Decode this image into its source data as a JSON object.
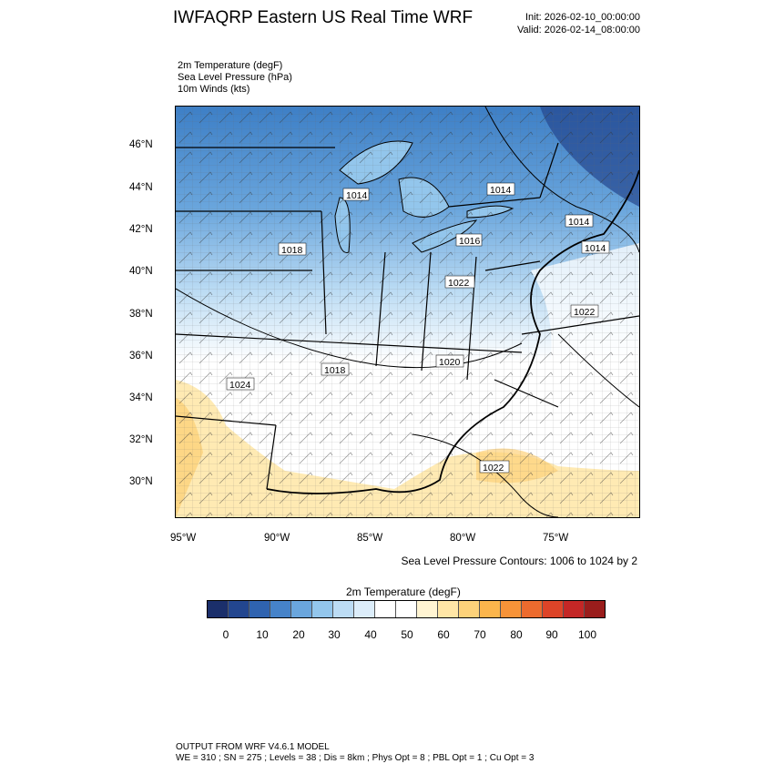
{
  "header": {
    "title": "IWFAQRP Eastern US Real Time WRF",
    "init": "Init: 2026-02-10_00:00:00",
    "valid": "Valid: 2026-02-14_08:00:00"
  },
  "fields": [
    "2m Temperature   (degF)",
    "Sea Level Pressure   (hPa)",
    "10m Winds   (kts)"
  ],
  "map": {
    "lat_labels": [
      "46°N",
      "44°N",
      "42°N",
      "40°N",
      "38°N",
      "36°N",
      "34°N",
      "32°N",
      "30°N"
    ],
    "lon_labels": [
      "95°W",
      "90°W",
      "85°W",
      "80°W",
      "75°W"
    ],
    "pressure_labels": [
      "1014",
      "1014",
      "1018",
      "1016",
      "1014",
      "1014",
      "1022",
      "1022",
      "1018",
      "1020",
      "1024",
      "1022"
    ],
    "pressure_note": "Sea Level Pressure Contours: 1006 to 1024 by 2"
  },
  "colorbar": {
    "title": "2m Temperature  (degF)",
    "labels": [
      "0",
      "10",
      "20",
      "30",
      "40",
      "50",
      "60",
      "70",
      "80",
      "90",
      "100"
    ],
    "colors": [
      "#1b2f6b",
      "#23468f",
      "#2f63b0",
      "#4683c9",
      "#6aa6dd",
      "#93c6ec",
      "#bcdcf4",
      "#dcedfa",
      "#ffffff",
      "#ffffff",
      "#fff4d2",
      "#ffe6a6",
      "#fdd27a",
      "#fbb54c",
      "#f79338",
      "#ec6b2e",
      "#dd4428",
      "#c42726",
      "#9a1d1c"
    ]
  },
  "footer": {
    "line1": "OUTPUT FROM WRF V4.6.1 MODEL",
    "line2": "WE = 310 ; SN = 275 ; Levels = 38 ; Dis = 8km ; Phys Opt = 8 ; PBL Opt = 1 ; Cu Opt = 3"
  }
}
